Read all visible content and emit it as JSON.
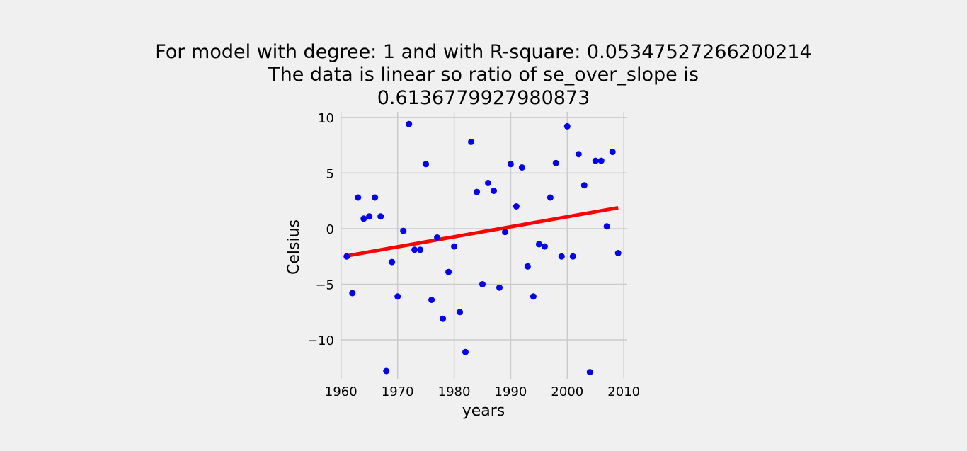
{
  "chart_data": {
    "type": "scatter",
    "title": [
      "For model with degree: 1 and with R-square: 0.05347527266200214",
      "The data is linear so ratio of se_over_slope is",
      "0.6136779927980873"
    ],
    "xlabel": "years",
    "ylabel": "Celsius",
    "xlim": [
      1959.9,
      2010.6
    ],
    "ylim": [
      -13.5,
      10.5
    ],
    "xticks": [
      1960,
      1970,
      1980,
      1990,
      2000,
      2010
    ],
    "yticks": [
      10,
      5,
      0,
      -5,
      -10
    ],
    "ytick_labels": [
      "10",
      "5",
      "0",
      "−5",
      "−10"
    ],
    "grid": true,
    "colors": {
      "background": "#f0f0f0",
      "grid": "#cbcbcb",
      "points": "#0000ff",
      "fit_line": "#ff0000"
    },
    "series": [
      {
        "type": "scatter",
        "x": [
          1961,
          1962,
          1963,
          1964,
          1965,
          1966,
          1967,
          1968,
          1969,
          1970,
          1971,
          1972,
          1973,
          1974,
          1975,
          1976,
          1977,
          1978,
          1979,
          1980,
          1981,
          1982,
          1983,
          1984,
          1985,
          1986,
          1987,
          1988,
          1989,
          1990,
          1991,
          1992,
          1993,
          1994,
          1995,
          1996,
          1997,
          1998,
          1999,
          2000,
          2001,
          2002,
          2003,
          2004,
          2005,
          2006,
          2007,
          2008,
          2009
        ],
        "y": [
          -2.5,
          -5.8,
          2.8,
          0.9,
          1.1,
          2.8,
          1.1,
          -12.8,
          -3.0,
          -6.1,
          -0.2,
          9.4,
          -1.9,
          -1.9,
          5.8,
          -6.4,
          -0.8,
          -8.1,
          -3.9,
          -1.6,
          -7.5,
          -11.1,
          7.8,
          3.3,
          -5.0,
          4.1,
          3.4,
          -5.3,
          -0.3,
          5.8,
          2.0,
          5.5,
          -3.4,
          -6.1,
          -1.4,
          -1.6,
          2.8,
          5.9,
          -2.5,
          9.2,
          -2.5,
          6.7,
          3.9,
          -12.9,
          6.1,
          6.1,
          0.2,
          6.9,
          -2.2
        ]
      },
      {
        "type": "line",
        "x": [
          1961,
          2009
        ],
        "y": [
          -2.45,
          1.88
        ]
      }
    ]
  }
}
